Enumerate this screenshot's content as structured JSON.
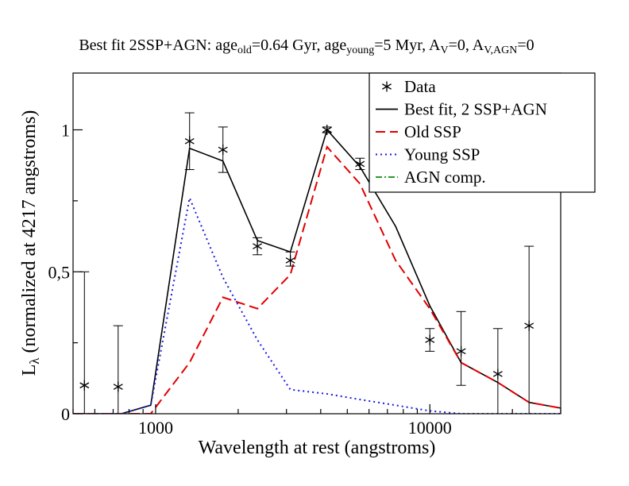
{
  "chart_data": {
    "type": "line",
    "title_parts": [
      {
        "t": "Best fit 2SSP+AGN: age",
        "sub": false
      },
      {
        "t": "old",
        "sub": true
      },
      {
        "t": "=0.64 Gyr, age",
        "sub": false
      },
      {
        "t": "young",
        "sub": true
      },
      {
        "t": "=5 Myr, A",
        "sub": false
      },
      {
        "t": "V",
        "sub": true
      },
      {
        "t": "=0, A",
        "sub": false
      },
      {
        "t": "V,AGN",
        "sub": true
      },
      {
        "t": "=0",
        "sub": false
      }
    ],
    "xlabel": "Wavelength at rest (angstroms)",
    "ylabel_parts": [
      {
        "t": "L",
        "sub": false
      },
      {
        "t": "λ",
        "sub": true
      },
      {
        "t": " (normalized at 4217 angstroms)",
        "sub": false
      }
    ],
    "x_scale": "log",
    "xlim": [
      500,
      30000
    ],
    "ylim": [
      0,
      1.2
    ],
    "x_ticks": [
      {
        "value": 1000,
        "label": "1000"
      },
      {
        "value": 10000,
        "label": "10000"
      }
    ],
    "y_ticks": [
      {
        "value": 0,
        "label": "0"
      },
      {
        "value": 0.5,
        "label": "0,5"
      },
      {
        "value": 1,
        "label": "1"
      }
    ],
    "legend_position": "top-right",
    "data_points": [
      {
        "x": 550,
        "y": 0.1,
        "err_low": 0.0,
        "err_high": 0.5
      },
      {
        "x": 730,
        "y": 0.095,
        "err_low": 0.0,
        "err_high": 0.31
      },
      {
        "x": 1330,
        "y": 0.96,
        "err_low": 0.86,
        "err_high": 1.06
      },
      {
        "x": 1760,
        "y": 0.93,
        "err_low": 0.85,
        "err_high": 1.01
      },
      {
        "x": 2350,
        "y": 0.59,
        "err_low": 0.56,
        "err_high": 0.62
      },
      {
        "x": 3100,
        "y": 0.54,
        "err_low": 0.52,
        "err_high": 0.57
      },
      {
        "x": 4217,
        "y": 1.0,
        "err_low": 0.99,
        "err_high": 1.01
      },
      {
        "x": 5560,
        "y": 0.88,
        "err_low": 0.86,
        "err_high": 0.9
      },
      {
        "x": 10000,
        "y": 0.26,
        "err_low": 0.22,
        "err_high": 0.3
      },
      {
        "x": 13000,
        "y": 0.22,
        "err_low": 0.1,
        "err_high": 0.36
      },
      {
        "x": 17700,
        "y": 0.14,
        "err_low": 0.0,
        "err_high": 0.3
      },
      {
        "x": 23000,
        "y": 0.31,
        "err_low": 0.0,
        "err_high": 0.59
      }
    ],
    "series": [
      {
        "name": "Best fit, 2 SSP+AGN",
        "color": "#000000",
        "dash": "solid",
        "points": [
          [
            500,
            0.0
          ],
          [
            750,
            0.0
          ],
          [
            960,
            0.03
          ],
          [
            1330,
            0.935
          ],
          [
            1760,
            0.89
          ],
          [
            2350,
            0.61
          ],
          [
            3100,
            0.57
          ],
          [
            4217,
            1.0
          ],
          [
            5560,
            0.87
          ],
          [
            7500,
            0.66
          ],
          [
            10000,
            0.38
          ],
          [
            13000,
            0.18
          ],
          [
            17700,
            0.11
          ],
          [
            23000,
            0.04
          ],
          [
            30000,
            0.02
          ]
        ]
      },
      {
        "name": "Old SSP",
        "color": "#e00000",
        "dash": "dashed",
        "points": [
          [
            500,
            0.0
          ],
          [
            750,
            0.0
          ],
          [
            960,
            0.0
          ],
          [
            1330,
            0.18
          ],
          [
            1760,
            0.41
          ],
          [
            2350,
            0.37
          ],
          [
            3100,
            0.49
          ],
          [
            4217,
            0.94
          ],
          [
            5560,
            0.81
          ],
          [
            7500,
            0.54
          ],
          [
            10000,
            0.37
          ],
          [
            13000,
            0.18
          ],
          [
            17700,
            0.11
          ],
          [
            23000,
            0.04
          ],
          [
            30000,
            0.02
          ]
        ]
      },
      {
        "name": "Young SSP",
        "color": "#1a1ae0",
        "dash": "dotted",
        "points": [
          [
            500,
            0.0
          ],
          [
            750,
            0.0
          ],
          [
            960,
            0.03
          ],
          [
            1330,
            0.76
          ],
          [
            1760,
            0.48
          ],
          [
            2350,
            0.26
          ],
          [
            3100,
            0.085
          ],
          [
            4217,
            0.07
          ],
          [
            5560,
            0.05
          ],
          [
            7500,
            0.03
          ],
          [
            10000,
            0.01
          ],
          [
            13000,
            0.0
          ],
          [
            17700,
            0.0
          ],
          [
            23000,
            0.0
          ],
          [
            30000,
            0.0
          ]
        ]
      },
      {
        "name": "AGN comp.",
        "color": "#2a9a2a",
        "dash": "dashdot",
        "points": []
      }
    ],
    "legend": [
      {
        "label": "Data",
        "symbol": "star"
      },
      {
        "label": "Best fit, 2 SSP+AGN",
        "symbol": "solid",
        "color": "#000000"
      },
      {
        "label": "Old SSP",
        "symbol": "dashed",
        "color": "#e00000"
      },
      {
        "label": "Young SSP",
        "symbol": "dotted",
        "color": "#1a1ae0"
      },
      {
        "label": "AGN comp.",
        "symbol": "dashdot",
        "color": "#2a9a2a"
      }
    ]
  }
}
